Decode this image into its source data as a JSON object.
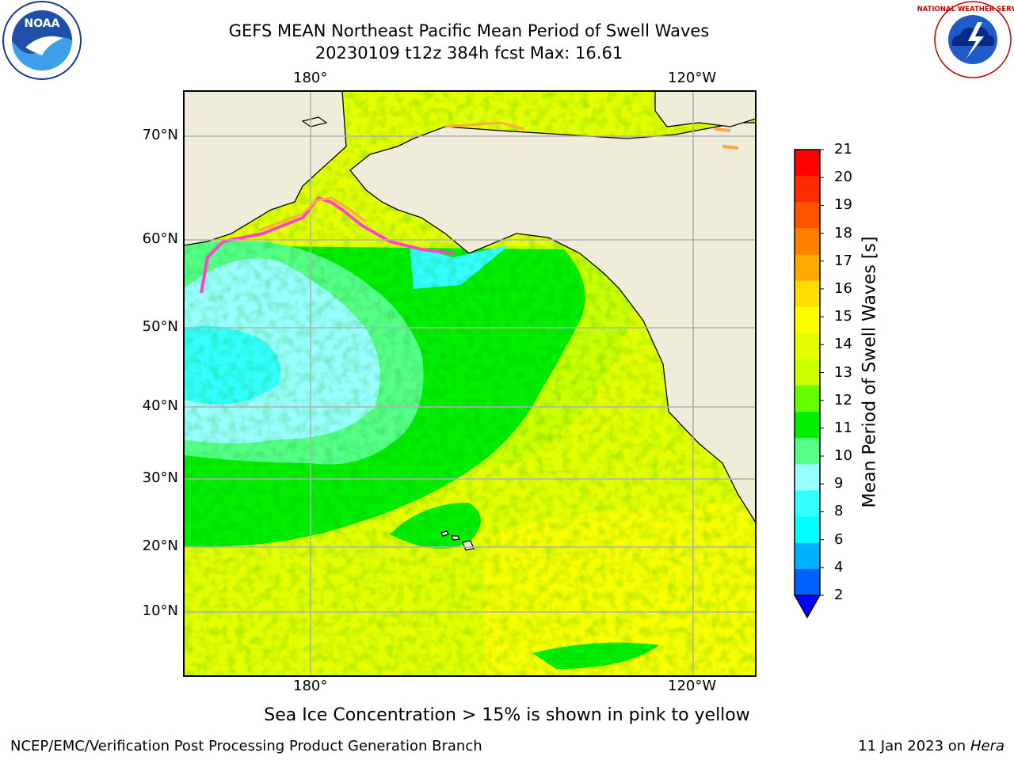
{
  "title": {
    "line1": "GEFS MEAN Northeast Pacific Mean Period of Swell Waves",
    "line2": "20230109 t12z 384h fcst   Max: 16.61"
  },
  "axes": {
    "lon_top": [
      "180°",
      "120°W"
    ],
    "lon_bottom": [
      "180°",
      "120°W"
    ],
    "lat": [
      "70°N",
      "60°N",
      "50°N",
      "40°N",
      "30°N",
      "20°N",
      "10°N"
    ]
  },
  "colorbar": {
    "label": "Mean Period of Swell Waves [s]",
    "ticks": [
      "21",
      "20",
      "19",
      "18",
      "17",
      "16",
      "15",
      "14",
      "13",
      "12",
      "11",
      "10",
      "9",
      "8",
      "6",
      "4",
      "2"
    ],
    "colors": [
      "#ff0000",
      "#ff2a00",
      "#ff5500",
      "#ff8000",
      "#ffaa00",
      "#ffdd00",
      "#ffff00",
      "#e6ff00",
      "#ccff00",
      "#66ff00",
      "#00ee00",
      "#55ff88",
      "#99ffff",
      "#33ffff",
      "#00ffff",
      "#00b0ff",
      "#0060ff"
    ],
    "extend_color": "#0000ff"
  },
  "logos": {
    "noaa_text": "NOAA",
    "nws_text": "NATIONAL WEATHER SERVICE"
  },
  "note": "Sea Ice Concentration > 15% is shown in pink to yellow",
  "footer": {
    "left": "NCEP/EMC/Verification Post Processing Product Generation Branch",
    "right_prefix": "11 Jan 2023 on",
    "right_italic": "Hera"
  },
  "map_colors": {
    "land": "#efedda",
    "ocean_light_blue": "#99ffff",
    "ocean_cyan": "#33ffff",
    "ocean_mint": "#55ff88",
    "ocean_green": "#00ee00",
    "ocean_lime": "#ccff00",
    "ocean_yellow": "#e6ff00",
    "ocean_bright_yellow": "#ffff00",
    "sea_ice_pink": "#ff44cc",
    "sea_ice_orange": "#ffaa44",
    "grid": "#b0b0b0"
  }
}
